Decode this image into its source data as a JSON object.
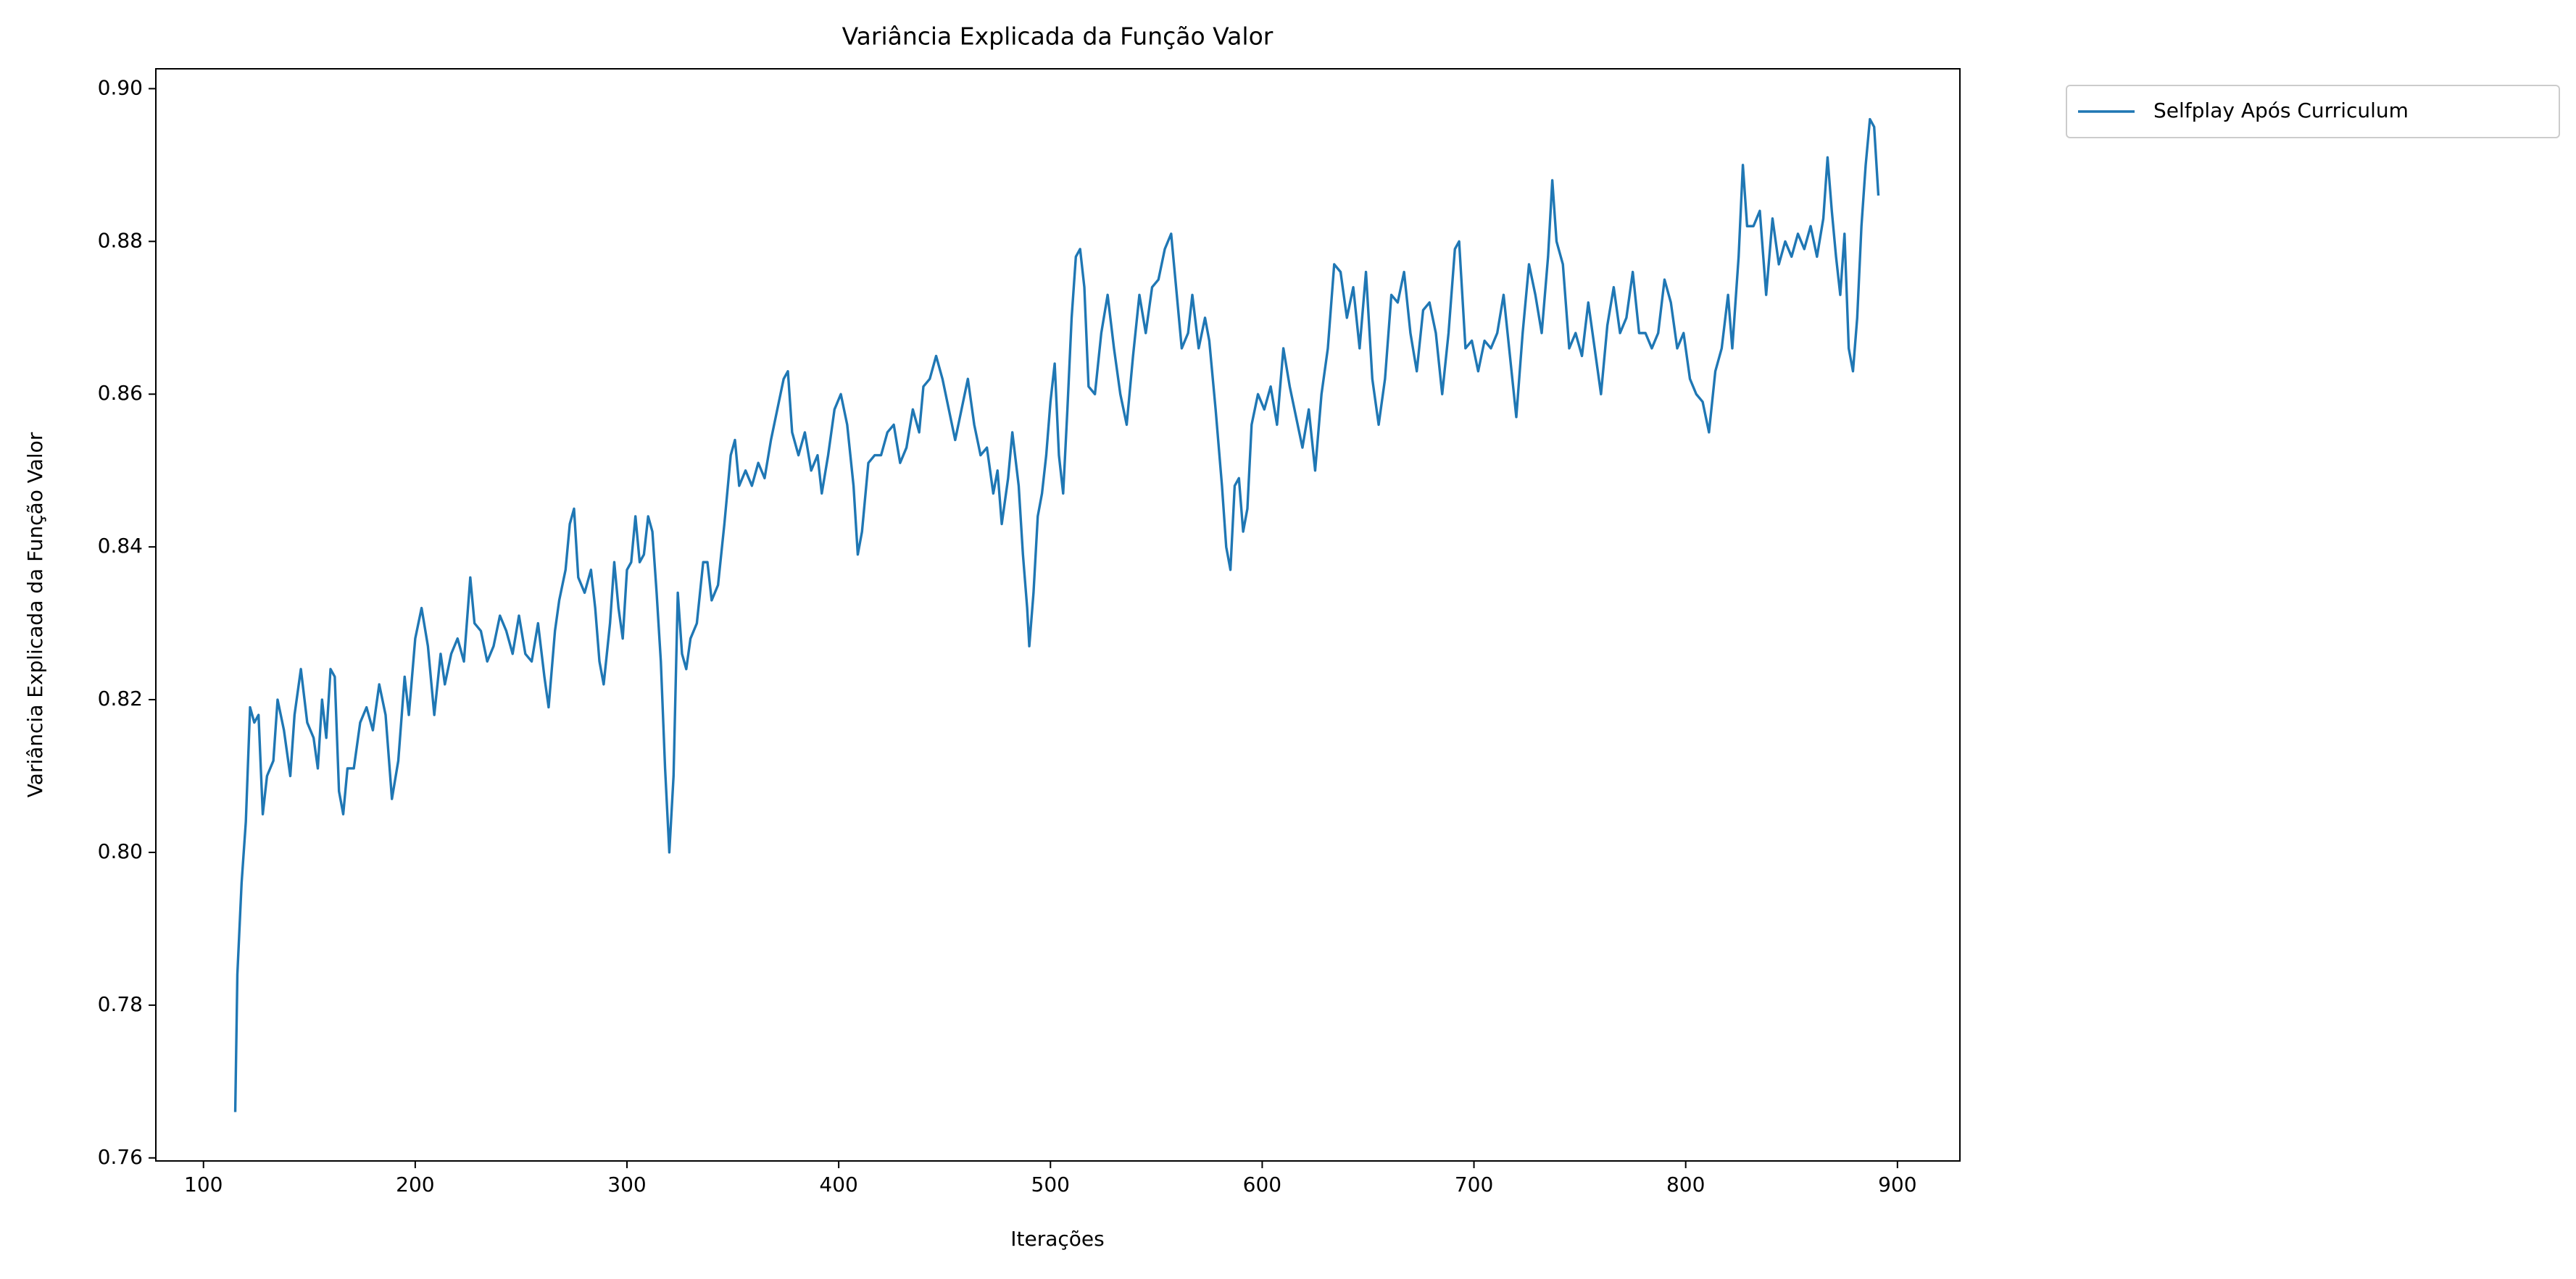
{
  "chart_data": {
    "type": "line",
    "title": "Variância Explicada da Função Valor",
    "xlabel": "Iterações",
    "ylabel": "Variância Explicada da Função Valor",
    "x": [
      115,
      116,
      118,
      120,
      122,
      124,
      126,
      128,
      130,
      133,
      135,
      138,
      141,
      143,
      146,
      149,
      152,
      154,
      156,
      158,
      160,
      162,
      164,
      166,
      168,
      171,
      174,
      177,
      180,
      183,
      186,
      189,
      192,
      195,
      197,
      200,
      203,
      206,
      209,
      212,
      214,
      217,
      220,
      223,
      226,
      228,
      231,
      234,
      237,
      240,
      243,
      246,
      249,
      252,
      255,
      258,
      261,
      263,
      266,
      268,
      271,
      273,
      275,
      277,
      280,
      283,
      285,
      287,
      289,
      292,
      294,
      296,
      298,
      300,
      302,
      304,
      306,
      308,
      310,
      312,
      314,
      316,
      318,
      320,
      322,
      324,
      326,
      328,
      330,
      333,
      336,
      338,
      340,
      343,
      346,
      349,
      351,
      353,
      356,
      359,
      362,
      365,
      368,
      371,
      374,
      376,
      378,
      381,
      384,
      387,
      390,
      392,
      395,
      398,
      401,
      404,
      407,
      409,
      411,
      414,
      417,
      420,
      423,
      426,
      429,
      432,
      435,
      438,
      440,
      443,
      446,
      449,
      452,
      455,
      458,
      461,
      464,
      467,
      470,
      473,
      475,
      477,
      480,
      482,
      485,
      487,
      489,
      490,
      492,
      494,
      496,
      498,
      500,
      502,
      504,
      506,
      508,
      510,
      512,
      514,
      516,
      518,
      521,
      524,
      527,
      530,
      533,
      536,
      539,
      542,
      545,
      548,
      551,
      554,
      557,
      559,
      562,
      565,
      567,
      570,
      573,
      575,
      578,
      581,
      583,
      585,
      587,
      589,
      591,
      593,
      595,
      598,
      601,
      604,
      607,
      610,
      613,
      616,
      619,
      622,
      625,
      628,
      631,
      634,
      637,
      640,
      643,
      646,
      649,
      652,
      655,
      658,
      661,
      664,
      667,
      670,
      673,
      676,
      679,
      682,
      685,
      688,
      691,
      693,
      696,
      699,
      702,
      705,
      708,
      711,
      714,
      717,
      720,
      723,
      726,
      729,
      732,
      735,
      737,
      739,
      742,
      745,
      748,
      751,
      754,
      757,
      760,
      763,
      766,
      769,
      772,
      775,
      778,
      781,
      784,
      787,
      790,
      793,
      796,
      799,
      802,
      805,
      808,
      811,
      814,
      817,
      820,
      822,
      825,
      827,
      829,
      832,
      835,
      838,
      841,
      844,
      847,
      850,
      853,
      856,
      859,
      862,
      865,
      867,
      869,
      871,
      873,
      875,
      877,
      879,
      881,
      883,
      885,
      887,
      889,
      891
    ],
    "series": [
      {
        "name": "Selfplay Após Curriculum",
        "color": "#1f77b4",
        "values": [
          0.766,
          0.784,
          0.796,
          0.804,
          0.819,
          0.817,
          0.818,
          0.805,
          0.81,
          0.812,
          0.82,
          0.816,
          0.81,
          0.818,
          0.824,
          0.817,
          0.815,
          0.811,
          0.82,
          0.815,
          0.824,
          0.823,
          0.808,
          0.805,
          0.811,
          0.811,
          0.817,
          0.819,
          0.816,
          0.822,
          0.818,
          0.807,
          0.812,
          0.823,
          0.818,
          0.828,
          0.832,
          0.827,
          0.818,
          0.826,
          0.822,
          0.826,
          0.828,
          0.825,
          0.836,
          0.83,
          0.829,
          0.825,
          0.827,
          0.831,
          0.829,
          0.826,
          0.831,
          0.826,
          0.825,
          0.83,
          0.823,
          0.819,
          0.829,
          0.833,
          0.837,
          0.843,
          0.845,
          0.836,
          0.834,
          0.837,
          0.832,
          0.825,
          0.822,
          0.83,
          0.838,
          0.832,
          0.828,
          0.837,
          0.838,
          0.844,
          0.838,
          0.839,
          0.844,
          0.842,
          0.834,
          0.825,
          0.811,
          0.8,
          0.81,
          0.834,
          0.826,
          0.824,
          0.828,
          0.83,
          0.838,
          0.838,
          0.833,
          0.835,
          0.843,
          0.852,
          0.854,
          0.848,
          0.85,
          0.848,
          0.851,
          0.849,
          0.854,
          0.858,
          0.862,
          0.863,
          0.855,
          0.852,
          0.855,
          0.85,
          0.852,
          0.847,
          0.852,
          0.858,
          0.86,
          0.856,
          0.848,
          0.839,
          0.842,
          0.851,
          0.852,
          0.852,
          0.855,
          0.856,
          0.851,
          0.853,
          0.858,
          0.855,
          0.861,
          0.862,
          0.865,
          0.862,
          0.858,
          0.854,
          0.858,
          0.862,
          0.856,
          0.852,
          0.853,
          0.847,
          0.85,
          0.843,
          0.849,
          0.855,
          0.848,
          0.839,
          0.832,
          0.827,
          0.834,
          0.844,
          0.847,
          0.852,
          0.859,
          0.864,
          0.852,
          0.847,
          0.858,
          0.87,
          0.878,
          0.879,
          0.874,
          0.861,
          0.86,
          0.868,
          0.873,
          0.866,
          0.86,
          0.856,
          0.865,
          0.873,
          0.868,
          0.874,
          0.875,
          0.879,
          0.881,
          0.875,
          0.866,
          0.868,
          0.873,
          0.866,
          0.87,
          0.867,
          0.858,
          0.848,
          0.84,
          0.837,
          0.848,
          0.849,
          0.842,
          0.845,
          0.856,
          0.86,
          0.858,
          0.861,
          0.856,
          0.866,
          0.861,
          0.857,
          0.853,
          0.858,
          0.85,
          0.86,
          0.866,
          0.877,
          0.876,
          0.87,
          0.874,
          0.866,
          0.876,
          0.862,
          0.856,
          0.862,
          0.873,
          0.872,
          0.876,
          0.868,
          0.863,
          0.871,
          0.872,
          0.868,
          0.86,
          0.868,
          0.879,
          0.88,
          0.866,
          0.867,
          0.863,
          0.867,
          0.866,
          0.868,
          0.873,
          0.865,
          0.857,
          0.868,
          0.877,
          0.873,
          0.868,
          0.878,
          0.888,
          0.88,
          0.877,
          0.866,
          0.868,
          0.865,
          0.872,
          0.866,
          0.86,
          0.869,
          0.874,
          0.868,
          0.87,
          0.876,
          0.868,
          0.868,
          0.866,
          0.868,
          0.875,
          0.872,
          0.866,
          0.868,
          0.862,
          0.86,
          0.859,
          0.855,
          0.863,
          0.866,
          0.873,
          0.866,
          0.878,
          0.89,
          0.882,
          0.882,
          0.884,
          0.873,
          0.883,
          0.877,
          0.88,
          0.878,
          0.881,
          0.879,
          0.882,
          0.878,
          0.883,
          0.891,
          0.884,
          0.878,
          0.873,
          0.881,
          0.866,
          0.863,
          0.87,
          0.882,
          0.89,
          0.896,
          0.895,
          0.886
        ]
      }
    ],
    "xlim": [
      77.5,
      929.5
    ],
    "xticks": [
      100,
      200,
      300,
      400,
      500,
      600,
      700,
      800,
      900
    ],
    "ylim": [
      0.7596,
      0.9026
    ],
    "yticks": [
      0.76,
      0.78,
      {
        "value": 0.8,
        "label": "0.80"
      },
      0.82,
      0.84,
      0.86,
      0.88,
      {
        "value": 0.9,
        "label": "0.90"
      }
    ],
    "grid": false,
    "legend": "outside upper right"
  }
}
